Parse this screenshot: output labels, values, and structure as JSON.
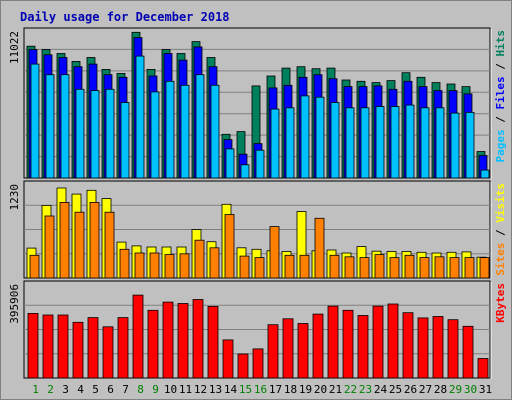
{
  "chart_data": [
    {
      "type": "bar",
      "title": "Daily usage for December 2018",
      "categories": [
        "1",
        "2",
        "3",
        "4",
        "5",
        "6",
        "7",
        "8",
        "9",
        "10",
        "11",
        "12",
        "13",
        "14",
        "15",
        "16",
        "17",
        "18",
        "19",
        "20",
        "21",
        "22",
        "23",
        "24",
        "25",
        "26",
        "27",
        "28",
        "29",
        "30",
        "31"
      ],
      "weekend_categories": [
        "1",
        "8",
        "15",
        "22",
        "29",
        "2",
        "9",
        "16",
        "23",
        "30"
      ],
      "y_tick": "11022",
      "ylim": [
        0,
        11022
      ],
      "right_label_parts": [
        "Pages",
        "Files",
        "Hits"
      ],
      "series": [
        {
          "name": "Hits",
          "color": "#00805c",
          "values": [
            9950,
            9700,
            9400,
            8800,
            9100,
            8200,
            7900,
            11000,
            8200,
            9700,
            9400,
            10300,
            9100,
            3300,
            3500,
            6950,
            7700,
            8300,
            8400,
            8250,
            8300,
            7400,
            7300,
            7200,
            7350,
            7950,
            7600,
            7200,
            7100,
            6900,
            2000
          ]
        },
        {
          "name": "Files",
          "color": "#0000ff",
          "values": [
            9700,
            9300,
            9100,
            8400,
            8600,
            7800,
            7600,
            10600,
            7700,
            9400,
            8900,
            9900,
            8400,
            2900,
            1800,
            2600,
            6800,
            7000,
            7600,
            7800,
            7500,
            6900,
            6900,
            6950,
            6700,
            7300,
            6900,
            6600,
            6600,
            6350,
            1700
          ]
        },
        {
          "name": "Pages",
          "color": "#00c0ff",
          "values": [
            8600,
            7800,
            7800,
            6700,
            6600,
            6700,
            5700,
            9200,
            6500,
            7300,
            7000,
            7800,
            7000,
            2200,
            1000,
            2100,
            5200,
            5300,
            6200,
            6100,
            5700,
            5300,
            5300,
            5400,
            5400,
            5500,
            5300,
            5300,
            4900,
            4950,
            600
          ]
        }
      ]
    },
    {
      "type": "bar",
      "categories": [
        "1",
        "2",
        "3",
        "4",
        "5",
        "6",
        "7",
        "8",
        "9",
        "10",
        "11",
        "12",
        "13",
        "14",
        "15",
        "16",
        "17",
        "18",
        "19",
        "20",
        "21",
        "22",
        "23",
        "24",
        "25",
        "26",
        "27",
        "28",
        "29",
        "30",
        "31"
      ],
      "y_tick": "1230",
      "ylim": [
        0,
        1230
      ],
      "right_label_parts": [
        "Sites",
        "Visits"
      ],
      "series": [
        {
          "name": "Visits",
          "color": "#ffff00",
          "values": [
            395,
            960,
            1190,
            1110,
            1160,
            1050,
            475,
            425,
            410,
            410,
            410,
            640,
            480,
            975,
            400,
            380,
            360,
            350,
            880,
            360,
            370,
            330,
            415,
            355,
            350,
            350,
            340,
            330,
            340,
            345,
            275
          ]
        },
        {
          "name": "Sites",
          "color": "#ff8000",
          "values": [
            300,
            820,
            1000,
            870,
            1000,
            870,
            380,
            330,
            330,
            310,
            320,
            500,
            400,
            840,
            290,
            270,
            680,
            300,
            300,
            790,
            300,
            280,
            270,
            310,
            270,
            300,
            270,
            280,
            270,
            270,
            270
          ]
        }
      ]
    },
    {
      "type": "bar",
      "categories": [
        "1",
        "2",
        "3",
        "4",
        "5",
        "6",
        "7",
        "8",
        "9",
        "10",
        "11",
        "12",
        "13",
        "14",
        "15",
        "16",
        "17",
        "18",
        "19",
        "20",
        "21",
        "22",
        "23",
        "24",
        "25",
        "26",
        "27",
        "28",
        "29",
        "30",
        "31"
      ],
      "y_tick": "395906",
      "ylim": [
        0,
        395906
      ],
      "right_label_parts": [
        "KBytes"
      ],
      "series": [
        {
          "name": "KBytes",
          "color": "#ff0000",
          "values": [
            275000,
            268000,
            268000,
            237000,
            257000,
            218000,
            257000,
            353000,
            288000,
            323000,
            317000,
            334000,
            305000,
            162000,
            102000,
            124000,
            227000,
            252000,
            232000,
            272000,
            306000,
            288000,
            266000,
            306000,
            315000,
            278000,
            256000,
            262000,
            248000,
            220000,
            83000
          ]
        }
      ]
    }
  ],
  "colors": {
    "title": "#0000b4",
    "weekday_label": "#000000",
    "weekend_label": "#008000",
    "grid": "#808080",
    "panel_bg": "#c0c0c0"
  }
}
